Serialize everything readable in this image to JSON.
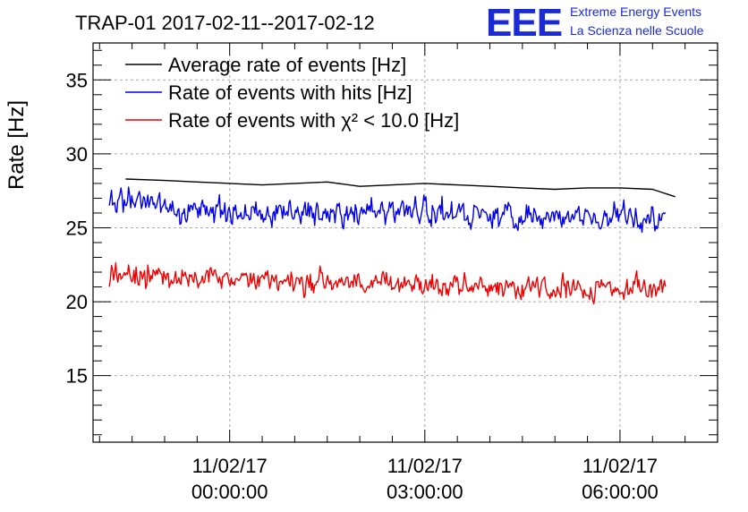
{
  "header": {
    "brand_logo": "EEE",
    "brand_line1": "Extreme Energy Events",
    "brand_line2": "La Scienza nelle Scuole"
  },
  "chart_data": {
    "type": "line",
    "title": "TRAP-01 2017-02-11--2017-02-12",
    "ylabel": "Rate [Hz]",
    "xlabel": "",
    "xunit": "hours since 11/02/17 00:00:00",
    "xlim": [
      -2.1,
      7.5
    ],
    "ylim": [
      10.5,
      37.5
    ],
    "yticks": [
      15,
      20,
      25,
      30,
      35
    ],
    "xticks": [
      {
        "x": 0,
        "date": "11/02/17",
        "time": "00:00:00"
      },
      {
        "x": 3,
        "date": "11/02/17",
        "time": "03:00:00"
      },
      {
        "x": 6,
        "date": "11/02/17",
        "time": "06:00:00"
      }
    ],
    "grid": true,
    "legend_position": "top-left",
    "series": [
      {
        "name": "Average rate of events [Hz]",
        "color": "#000000",
        "style": "smooth",
        "x": [
          -1.6,
          -1.0,
          -0.5,
          0.0,
          0.5,
          1.0,
          1.5,
          2.0,
          2.5,
          3.0,
          3.5,
          4.0,
          4.5,
          5.0,
          5.5,
          6.0,
          6.5,
          6.85
        ],
        "values": [
          28.3,
          28.2,
          28.1,
          28.0,
          27.9,
          28.0,
          28.1,
          27.8,
          27.9,
          28.0,
          27.9,
          27.8,
          27.7,
          27.6,
          27.7,
          27.7,
          27.6,
          27.1
        ]
      },
      {
        "name": "Rate of events with hits [Hz]",
        "color": "#0000ee",
        "style": "noisy",
        "x": [
          -1.85,
          -1.0,
          0.0,
          1.0,
          2.0,
          3.0,
          4.0,
          5.0,
          6.0,
          6.7
        ],
        "values": [
          26.7,
          26.3,
          26.1,
          26.0,
          26.2,
          26.1,
          25.9,
          25.8,
          25.7,
          25.7
        ],
        "noise": 0.65
      },
      {
        "name": "Rate of events with χ² < 10.0 [Hz]",
        "color": "#ee0000",
        "style": "noisy",
        "x": [
          -1.85,
          -1.0,
          0.0,
          1.0,
          2.0,
          3.0,
          4.0,
          5.0,
          6.0,
          6.7
        ],
        "values": [
          21.8,
          21.6,
          21.5,
          21.4,
          21.3,
          21.2,
          21.1,
          21.0,
          21.0,
          21.0
        ],
        "noise": 0.6
      }
    ]
  }
}
